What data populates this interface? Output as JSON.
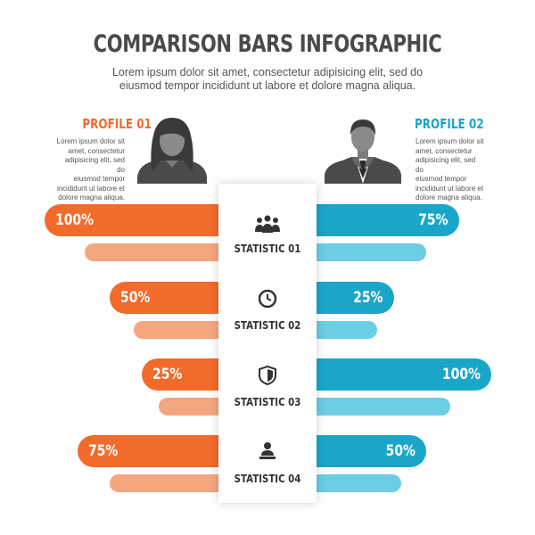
{
  "title": "COMPARISON BARS INFOGRAPHIC",
  "subtitle_line1": "Lorem ipsum dolor sit amet, consectetur adipisicing elit, sed do",
  "subtitle_line2": "eiusmod tempor incididunt ut labore et dolore magna aliqua.",
  "profiles": [
    {
      "title": "PROFILE 01",
      "text_lines": [
        "Lorem ipsum dolor sit",
        "amet, consectetur",
        "adipisicing elit, sed do",
        "eiusmod tempor",
        "incididunt ut labore et",
        "dolore magna aliqua."
      ],
      "icon": "female-avatar-icon",
      "color": "#f26b2a",
      "sub_color": "#f4a67f"
    },
    {
      "title": "PROFILE 02",
      "text_lines": [
        "Lorem ipsum dolor sit",
        "amet, consectetur",
        "adipisicing elit, sed do",
        "eiusmod tempor",
        "incididunt ut labore et",
        "dolore magna aliqua."
      ],
      "icon": "male-avatar-icon",
      "color": "#1aa6c8",
      "sub_color": "#6ccde4"
    }
  ],
  "statistics": [
    {
      "label": "STATISTIC 01",
      "icon": "people-group-icon",
      "left_value": 100,
      "left_label": "100%",
      "right_value": 75,
      "right_label": "75%"
    },
    {
      "label": "STATISTIC 02",
      "icon": "clock-icon",
      "left_value": 50,
      "left_label": "50%",
      "right_value": 25,
      "right_label": "25%"
    },
    {
      "label": "STATISTIC 03",
      "icon": "shield-icon",
      "left_value": 25,
      "left_label": "25%",
      "right_value": 100,
      "right_label": "100%"
    },
    {
      "label": "STATISTIC 04",
      "icon": "user-laptop-icon",
      "left_value": 75,
      "left_label": "75%",
      "right_value": 50,
      "right_label": "50%"
    }
  ]
}
